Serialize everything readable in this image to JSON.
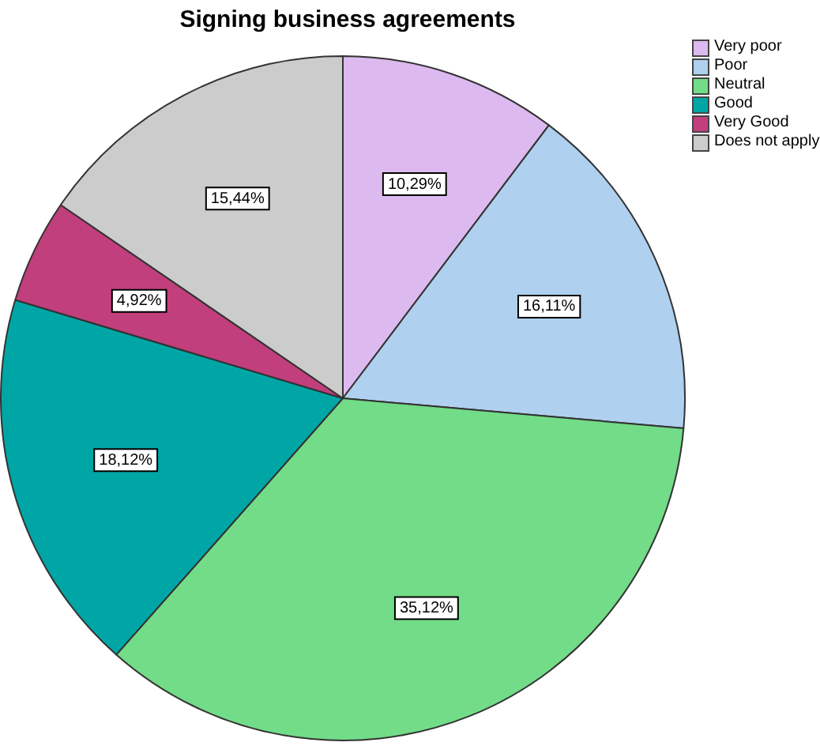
{
  "chart_data": {
    "type": "pie",
    "title": "Signing business agreements",
    "categories": [
      "Very poor",
      "Poor",
      "Neutral",
      "Good",
      "Very Good",
      "Does not apply"
    ],
    "values": [
      10.29,
      16.11,
      35.12,
      18.12,
      4.92,
      15.44
    ],
    "colors": [
      "#dcb9ef",
      "#afd0ee",
      "#72dc88",
      "#00a6a6",
      "#c13f7c",
      "#cccccc"
    ],
    "value_labels": [
      "10,29%",
      "16,11%",
      "35,12%",
      "18,12%",
      "4,92%",
      "15,44%"
    ],
    "legend": "top right"
  }
}
